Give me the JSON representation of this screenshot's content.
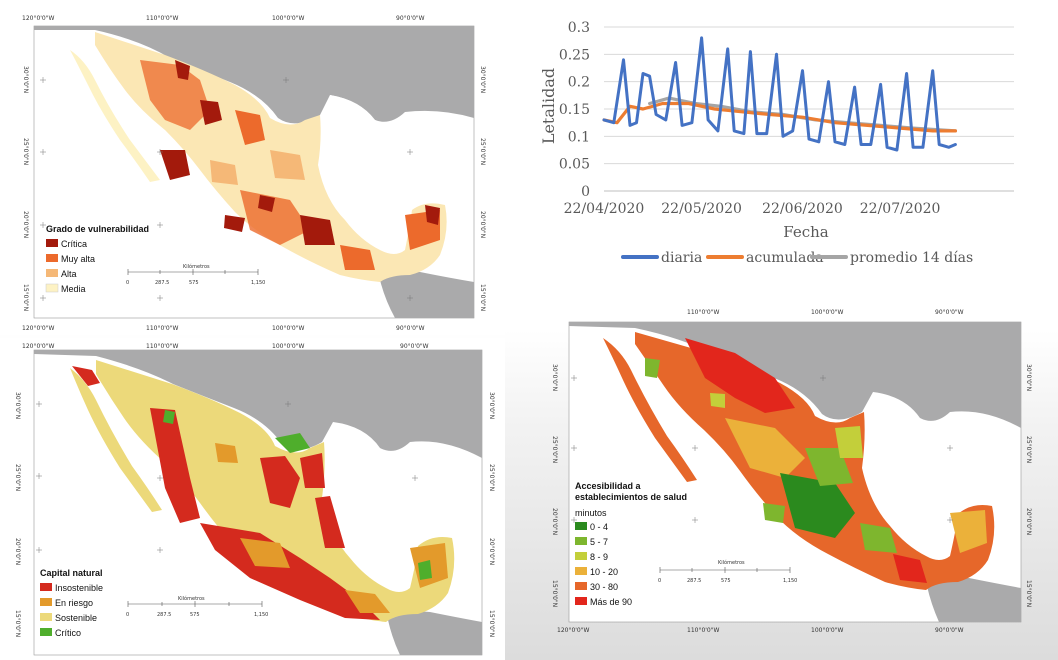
{
  "maps": [
    {
      "id": "vulnerabilidad",
      "lon_labels": [
        "120°0'0\"W",
        "110°0'0\"W",
        "100°0'0\"W",
        "90°0'0\"W"
      ],
      "lat_labels": [
        "30°0'0\"N",
        "25°0'0\"N",
        "20°0'0\"N",
        "15°0'0\"N"
      ],
      "legend": {
        "title": "Grado de vulnerabilidad",
        "items": [
          {
            "label": "Crítica",
            "color": "#a31a0c"
          },
          {
            "label": "Muy alta",
            "color": "#ec6a2c"
          },
          {
            "label": "Alta",
            "color": "#f5b877"
          },
          {
            "label": "Media",
            "color": "#fdf2c4"
          }
        ]
      },
      "scale": {
        "unit": "Kilómetros",
        "ticks": [
          "0",
          "287.5",
          "575",
          "1,150"
        ]
      }
    },
    {
      "id": "capital",
      "lon_labels": [
        "120°0'0\"W",
        "110°0'0\"W",
        "100°0'0\"W",
        "90°0'0\"W"
      ],
      "lat_labels": [
        "30°0'0\"N",
        "25°0'0\"N",
        "20°0'0\"N",
        "15°0'0\"N"
      ],
      "legend": {
        "title": "Capital natural",
        "items": [
          {
            "label": "Insostenible",
            "color": "#d42a1e"
          },
          {
            "label": "En riesgo",
            "color": "#e39a2b"
          },
          {
            "label": "Sostenible",
            "color": "#ecd97a"
          },
          {
            "label": "Crítico",
            "color": "#4fae2c"
          }
        ]
      },
      "scale": {
        "unit": "Kilómetros",
        "ticks": [
          "0",
          "287.5",
          "575",
          "1,150"
        ]
      }
    },
    {
      "id": "accesibilidad",
      "lon_labels": [
        "120°0'0\"W",
        "110°0'0\"W",
        "100°0'0\"W",
        "90°0'0\"W"
      ],
      "lat_labels": [
        "30°0'0\"N",
        "25°0'0\"N",
        "20°0'0\"N",
        "15°0'0\"N"
      ],
      "legend": {
        "title": "Accesibilidad a",
        "title2": "establecimientos de salud",
        "subtitle": "minutos",
        "items": [
          {
            "label": "0 - 4",
            "color": "#2b8a1e"
          },
          {
            "label": "5 - 7",
            "color": "#7eb62e"
          },
          {
            "label": "8 - 9",
            "color": "#c3cf3a"
          },
          {
            "label": "10 - 20",
            "color": "#ebb13a"
          },
          {
            "label": "30 - 80",
            "color": "#e6672a"
          },
          {
            "label": "Más de 90",
            "color": "#e2261c"
          }
        ]
      },
      "scale": {
        "unit": "Kilómetros",
        "ticks": [
          "0",
          "287.5",
          "575",
          "1,150"
        ]
      }
    }
  ],
  "chart_data": {
    "type": "line",
    "title": "",
    "xlabel": "Fecha",
    "ylabel": "Letalidad",
    "ylim": [
      0,
      0.3
    ],
    "yticks": [
      0,
      0.05,
      0.1,
      0.15,
      0.2,
      0.25,
      0.3
    ],
    "ytick_labels": [
      "0",
      "0.05",
      "0.1",
      "0.15",
      "0.2",
      "0.25",
      "0.3"
    ],
    "x_start": "22/04/2020",
    "x_end": "26/08/2020",
    "xticks": [
      "22/04/2020",
      "22/05/2020",
      "22/06/2020",
      "22/07/2020"
    ],
    "grid": true,
    "legend_position": "bottom",
    "series": [
      {
        "name": "diaria",
        "color": "#4472c4",
        "points": [
          [
            "22/04/2020",
            0.13
          ],
          [
            "25/04/2020",
            0.125
          ],
          [
            "28/04/2020",
            0.24
          ],
          [
            "30/04/2020",
            0.12
          ],
          [
            "02/05/2020",
            0.125
          ],
          [
            "04/05/2020",
            0.215
          ],
          [
            "06/05/2020",
            0.21
          ],
          [
            "08/05/2020",
            0.14
          ],
          [
            "11/05/2020",
            0.13
          ],
          [
            "14/05/2020",
            0.235
          ],
          [
            "16/05/2020",
            0.12
          ],
          [
            "19/05/2020",
            0.125
          ],
          [
            "22/05/2020",
            0.28
          ],
          [
            "24/05/2020",
            0.13
          ],
          [
            "27/05/2020",
            0.11
          ],
          [
            "30/05/2020",
            0.26
          ],
          [
            "01/06/2020",
            0.11
          ],
          [
            "04/06/2020",
            0.105
          ],
          [
            "06/06/2020",
            0.255
          ],
          [
            "08/06/2020",
            0.105
          ],
          [
            "11/06/2020",
            0.105
          ],
          [
            "14/06/2020",
            0.25
          ],
          [
            "16/06/2020",
            0.1
          ],
          [
            "19/06/2020",
            0.11
          ],
          [
            "22/06/2020",
            0.22
          ],
          [
            "24/06/2020",
            0.095
          ],
          [
            "27/06/2020",
            0.09
          ],
          [
            "30/06/2020",
            0.2
          ],
          [
            "02/07/2020",
            0.09
          ],
          [
            "05/07/2020",
            0.085
          ],
          [
            "08/07/2020",
            0.19
          ],
          [
            "10/07/2020",
            0.085
          ],
          [
            "13/07/2020",
            0.085
          ],
          [
            "16/07/2020",
            0.195
          ],
          [
            "18/07/2020",
            0.08
          ],
          [
            "21/07/2020",
            0.075
          ],
          [
            "24/07/2020",
            0.215
          ],
          [
            "26/07/2020",
            0.08
          ],
          [
            "29/07/2020",
            0.08
          ],
          [
            "01/08/2020",
            0.22
          ],
          [
            "03/08/2020",
            0.085
          ],
          [
            "06/08/2020",
            0.08
          ],
          [
            "08/08/2020",
            0.085
          ]
        ]
      },
      {
        "name": "acumulada",
        "color": "#ed7d31",
        "points": [
          [
            "22/04/2020",
            0.13
          ],
          [
            "26/04/2020",
            0.125
          ],
          [
            "30/04/2020",
            0.155
          ],
          [
            "04/05/2020",
            0.15
          ],
          [
            "10/05/2020",
            0.16
          ],
          [
            "18/05/2020",
            0.16
          ],
          [
            "26/05/2020",
            0.15
          ],
          [
            "03/06/2020",
            0.145
          ],
          [
            "12/06/2020",
            0.14
          ],
          [
            "22/06/2020",
            0.135
          ],
          [
            "02/07/2020",
            0.125
          ],
          [
            "12/07/2020",
            0.12
          ],
          [
            "22/07/2020",
            0.115
          ],
          [
            "01/08/2020",
            0.11
          ],
          [
            "08/08/2020",
            0.11
          ]
        ]
      },
      {
        "name": "promedio 14 días",
        "color": "#a5a5a5",
        "points": [
          [
            "06/05/2020",
            0.16
          ],
          [
            "12/05/2020",
            0.17
          ],
          [
            "20/05/2020",
            0.16
          ],
          [
            "28/05/2020",
            0.155
          ],
          [
            "06/06/2020",
            0.145
          ],
          [
            "16/06/2020",
            0.14
          ],
          [
            "26/06/2020",
            0.13
          ],
          [
            "06/07/2020",
            0.125
          ],
          [
            "16/07/2020",
            0.12
          ],
          [
            "26/07/2020",
            0.115
          ],
          [
            "08/08/2020",
            0.11
          ]
        ]
      }
    ]
  }
}
